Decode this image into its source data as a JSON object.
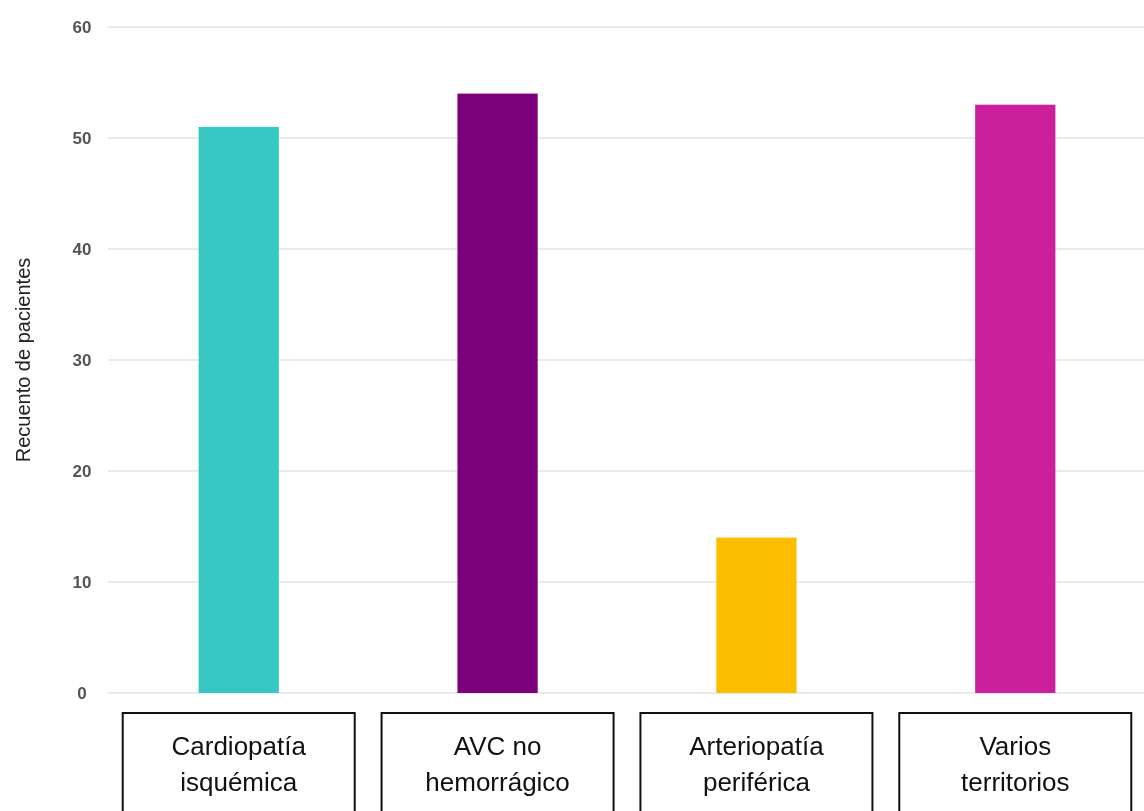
{
  "chart_data": {
    "type": "bar",
    "ylabel": "Recuento de pacientes",
    "categories": [
      "Cardiopatía isquémica",
      "AVC no hemorrágico",
      "Arteriopatía periférica",
      "Varios territorios"
    ],
    "values": [
      51,
      54,
      14,
      53
    ],
    "colors": [
      "#37c8c3",
      "#7b007b",
      "#fbbd00",
      "#cc1f9b"
    ],
    "ylim": [
      0,
      60
    ],
    "yticks": [
      0,
      10,
      20,
      30,
      40,
      50,
      60
    ],
    "grid": "y"
  }
}
